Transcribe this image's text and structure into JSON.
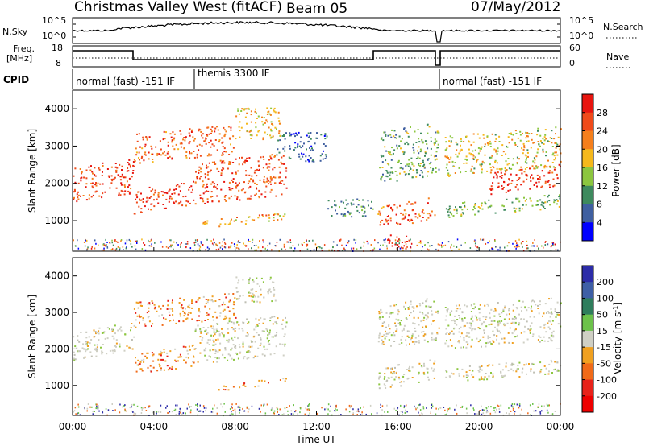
{
  "header": {
    "station": "Christmas Valley West (fitACF)",
    "beam": "Beam 05",
    "date": "07/May/2012"
  },
  "top_panel": {
    "left_label": "N.Sky",
    "left_ticks": [
      "10^5",
      "10^0"
    ],
    "right_ticks": [
      "10^5",
      "10^0"
    ],
    "right_label": "N.Search"
  },
  "freq_panel": {
    "left_label_line1": "Freq.",
    "left_label_line2": "[MHz]",
    "left_ticks": [
      "18",
      "8"
    ],
    "right_ticks": [
      "60",
      "0"
    ],
    "right_label": "Nave"
  },
  "cpid": {
    "label": "CPID",
    "segments": [
      "normal (fast) -151 IF",
      "themis 3300 IF",
      "normal (fast) -151 IF"
    ]
  },
  "chart_data": [
    {
      "type": "heatmap",
      "name": "power",
      "ylabel": "Slant Range [km]",
      "yticks": [
        "1000",
        "2000",
        "3000",
        "4000"
      ],
      "ylim": [
        180,
        4500
      ],
      "xlim_hours": [
        0,
        24
      ],
      "colorbar": {
        "label": "Power [dB]",
        "ticks": [
          "4",
          "8",
          "12",
          "16",
          "20",
          "24",
          "28"
        ],
        "range": [
          0,
          30
        ],
        "colors": [
          "#0000ff",
          "#3f5fa0",
          "#3e8a5e",
          "#8cc63f",
          "#f5b81c",
          "#f57f1c",
          "#ef4a1a",
          "#e8150f"
        ]
      },
      "scatter_bands": [
        {
          "t0": 0.0,
          "t1": 3.0,
          "r0": 1500,
          "r1": 2450,
          "cmin": 20,
          "cmax": 30
        },
        {
          "t0": 3.0,
          "t1": 6.0,
          "r0": 1200,
          "r1": 1850,
          "cmin": 22,
          "cmax": 30
        },
        {
          "t0": 6.0,
          "t1": 10.5,
          "r0": 1450,
          "r1": 2600,
          "cmin": 20,
          "cmax": 29
        },
        {
          "t0": 3.0,
          "t1": 8.0,
          "r0": 2550,
          "r1": 3350,
          "cmin": 18,
          "cmax": 28
        },
        {
          "t0": 8.0,
          "t1": 10.2,
          "r0": 3200,
          "r1": 4050,
          "cmin": 12,
          "cmax": 22
        },
        {
          "t0": 6.0,
          "t1": 10.5,
          "r0": 780,
          "r1": 1000,
          "cmin": 14,
          "cmax": 24
        },
        {
          "t0": 10.0,
          "t1": 12.5,
          "r0": 2600,
          "r1": 3400,
          "cmin": 3,
          "cmax": 10
        },
        {
          "t0": 12.5,
          "t1": 14.8,
          "r0": 1100,
          "r1": 1600,
          "cmin": 4,
          "cmax": 12
        },
        {
          "t0": 15.0,
          "t1": 17.8,
          "r0": 800,
          "r1": 1400,
          "cmin": 18,
          "cmax": 29
        },
        {
          "t0": 15.5,
          "t1": 16.5,
          "r0": 250,
          "r1": 650,
          "cmin": 24,
          "cmax": 30
        },
        {
          "t0": 15.0,
          "t1": 18.0,
          "r0": 2000,
          "r1": 3400,
          "cmin": 6,
          "cmax": 16
        },
        {
          "t0": 18.3,
          "t1": 24.0,
          "r0": 2200,
          "r1": 3300,
          "cmin": 10,
          "cmax": 22
        },
        {
          "t0": 20.5,
          "t1": 24.0,
          "r0": 1700,
          "r1": 2300,
          "cmin": 22,
          "cmax": 30
        },
        {
          "t0": 18.3,
          "t1": 24.0,
          "r0": 1100,
          "r1": 1500,
          "cmin": 8,
          "cmax": 16
        }
      ]
    },
    {
      "type": "heatmap",
      "name": "velocity",
      "ylabel": "Slant Range [km]",
      "yticks": [
        "1000",
        "2000",
        "3000",
        "4000"
      ],
      "ylim": [
        180,
        4500
      ],
      "xlim_hours": [
        0,
        24
      ],
      "xticks": [
        "00:00",
        "04:00",
        "08:00",
        "12:00",
        "16:00",
        "20:00",
        "00:00"
      ],
      "xlabel": "Time UT",
      "colorbar": {
        "label": "Velocity [m s-1]",
        "ticks": [
          "200",
          "100",
          "50",
          "15",
          "-15",
          "-50",
          "-100",
          "-200"
        ],
        "colors": [
          "#2c2ca8",
          "#3e5fa6",
          "#2e7d5c",
          "#6cc24a",
          "#cfcfc4",
          "#f0a020",
          "#f06a18",
          "#e8221a",
          "#ee0000"
        ]
      },
      "scatter_bands": [
        {
          "t0": 0.0,
          "t1": 3.0,
          "r0": 1700,
          "r1": 2500,
          "kind": "gray"
        },
        {
          "t0": 3.0,
          "t1": 6.0,
          "r0": 1300,
          "r1": 1900,
          "kind": "orange"
        },
        {
          "t0": 6.0,
          "t1": 10.5,
          "r0": 1600,
          "r1": 2700,
          "kind": "gray"
        },
        {
          "t0": 3.0,
          "t1": 8.0,
          "r0": 2600,
          "r1": 3300,
          "kind": "orange"
        },
        {
          "t0": 8.0,
          "t1": 10.0,
          "r0": 3300,
          "r1": 4000,
          "kind": "gray"
        },
        {
          "t0": 7.0,
          "t1": 10.5,
          "r0": 850,
          "r1": 1000,
          "kind": "orange"
        },
        {
          "t0": 15.0,
          "t1": 17.8,
          "r0": 900,
          "r1": 1500,
          "kind": "gray"
        },
        {
          "t0": 15.0,
          "t1": 18.0,
          "r0": 2000,
          "r1": 3200,
          "kind": "gray"
        },
        {
          "t0": 18.3,
          "t1": 24.0,
          "r0": 2000,
          "r1": 3200,
          "kind": "gray"
        },
        {
          "t0": 18.3,
          "t1": 24.0,
          "r0": 1100,
          "r1": 1500,
          "kind": "gray"
        }
      ]
    }
  ]
}
